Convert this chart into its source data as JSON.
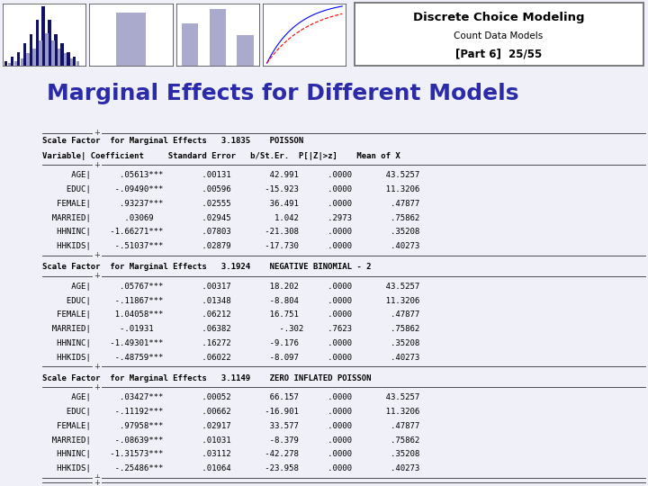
{
  "title": "Marginal Effects for Different Models",
  "header_title": "Discrete Choice Modeling",
  "header_subtitle": "Count Data Models",
  "header_slide": "[Part 6]  25/55",
  "bg_color": "#f0f0f8",
  "title_color": "#2b2baa",
  "left_bar_color": "#5533aa",
  "banner_bg": "#b8b8d8",
  "sections": [
    {
      "scale_line": "Scale Factor  for Marginal Effects   3.1835    POISSON",
      "header_line": "Variable| Coefficient     Standard Error   b/St.Er.  P[|Z|>z]    Mean of X",
      "rows": [
        "      AGE|      .05613***        .00131        42.991      .0000       43.5257",
        "     EDUC|     -.09490***        .00596       -15.923      .0000       11.3206",
        "   FEMALE|      .93237***        .02555        36.491      .0000        .47877",
        "  MARRIED|       .03069          .02945         1.042      .2973        .75862",
        "   HHNINC|    -1.66271***        .07803       -21.308      .0000        .35208",
        "   HHKIDS|     -.51037***        .02879       -17.730      .0000        .40273"
      ]
    },
    {
      "scale_line": "Scale Factor  for Marginal Effects   3.1924    NEGATIVE BINOMIAL - 2",
      "header_line": null,
      "rows": [
        "      AGE|      .05767***        .00317        18.202      .0000       43.5257",
        "     EDUC|     -.11867***        .01348        -8.804      .0000       11.3206",
        "   FEMALE|     1.04058***        .06212        16.751      .0000        .47877",
        "  MARRIED|      -.01931          .06382          -.302     .7623        .75862",
        "   HHNINC|    -1.49301***        .16272        -9.176      .0000        .35208",
        "   HHKIDS|     -.48759***        .06022        -8.097      .0000        .40273"
      ]
    },
    {
      "scale_line": "Scale Factor  for Marginal Effects   3.1149    ZERO INFLATED POISSON",
      "header_line": null,
      "rows": [
        "      AGE|      .03427***        .00052        66.157      .0000       43.5257",
        "     EDUC|     -.11192***        .00662       -16.901      .0000       11.3206",
        "   FEMALE|      .97958***        .02917        33.577      .0000        .47877",
        "  MARRIED|     -.08639***        .01031        -8.379      .0000        .75862",
        "   HHNINC|    -1.31573***        .03112       -42.278      .0000        .35208",
        "   HHKIDS|     -.25486***        .01064       -23.958      .0000        .40273"
      ]
    }
  ]
}
